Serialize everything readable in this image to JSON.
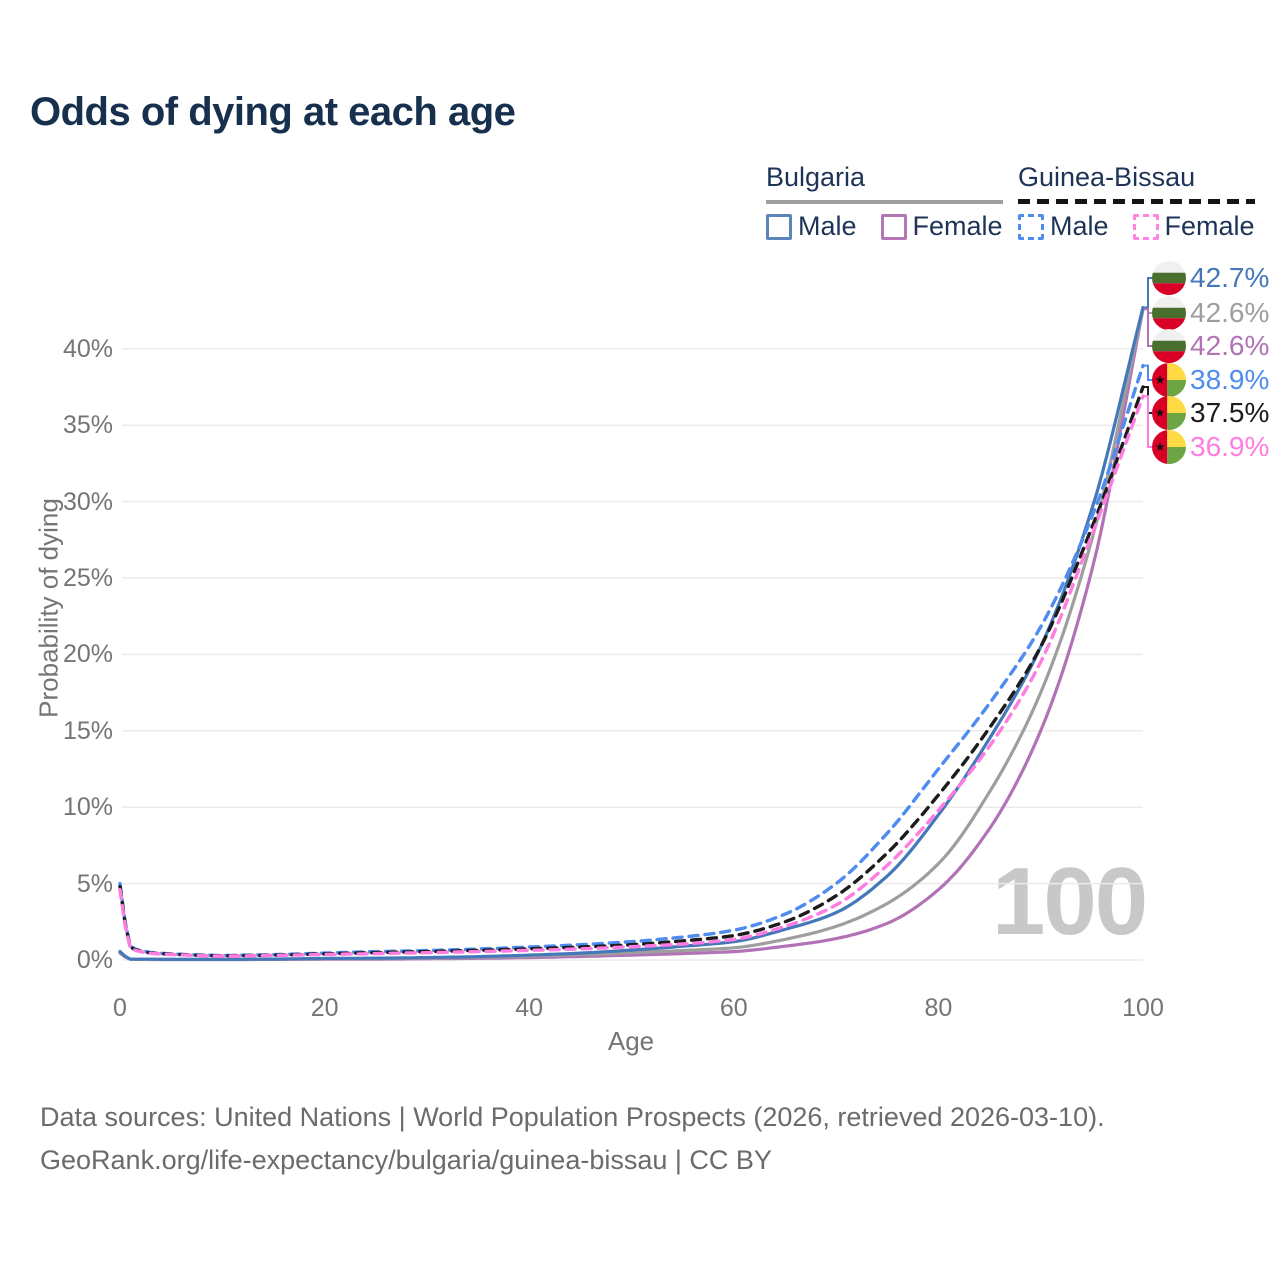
{
  "title": "Odds of dying at each age",
  "legend": {
    "groups": [
      {
        "country": "Bulgaria",
        "style": "solid",
        "entries": [
          {
            "label": "Male",
            "key": "bg_male"
          },
          {
            "label": "Female",
            "key": "bg_female"
          }
        ]
      },
      {
        "country": "Guinea-Bissau",
        "style": "dashed",
        "entries": [
          {
            "label": "Male",
            "key": "gw_male"
          },
          {
            "label": "Female",
            "key": "gw_female"
          }
        ]
      }
    ]
  },
  "watermark": "100",
  "footer": {
    "line1": "Data sources: United Nations | World Population Prospects (2026, retrieved 2026-03-10).",
    "line2": "GeoRank.org/life-expectancy/bulgaria/guinea-bissau | CC BY"
  },
  "colors": {
    "title": "#17304e",
    "axis_text": "#757575",
    "grid": "#ebebeb",
    "bg_male": "#4478b9",
    "bg_both": "#9e9e9e",
    "bg_female": "#b173b6",
    "gw_male": "#4e8cf0",
    "gw_both": "#1c1c1c",
    "gw_female": "#ff7ce0"
  },
  "chart_data": {
    "type": "line",
    "title": "Odds of dying at each age",
    "xlabel": "Age",
    "ylabel": "Probability of dying",
    "xlim": [
      0,
      100
    ],
    "ylim_percent": [
      0,
      44
    ],
    "x_ticks": [
      0,
      20,
      40,
      60,
      80,
      100
    ],
    "y_ticks_percent": [
      0,
      5,
      10,
      15,
      20,
      25,
      30,
      35,
      40
    ],
    "y_tick_suffix": "%",
    "grid": "horizontal-only",
    "legend_position": "top-right",
    "ages": [
      0,
      1,
      2,
      3,
      5,
      10,
      15,
      20,
      25,
      30,
      35,
      40,
      45,
      50,
      55,
      60,
      65,
      70,
      75,
      80,
      85,
      90,
      95,
      100
    ],
    "series": [
      {
        "name": "Bulgaria Male",
        "key": "bg_male",
        "country": "Bulgaria",
        "flag": "bulgaria",
        "dash": false,
        "color": "#4478b9",
        "end_label": "42.7%",
        "values_percent": [
          0.55,
          0.06,
          0.05,
          0.05,
          0.04,
          0.04,
          0.06,
          0.1,
          0.12,
          0.16,
          0.22,
          0.32,
          0.45,
          0.65,
          0.9,
          1.2,
          2.0,
          3.1,
          5.5,
          9.5,
          14.5,
          20.5,
          29.5,
          42.7
        ]
      },
      {
        "name": "Bulgaria Both sexes",
        "key": "bg_both",
        "country": "Bulgaria",
        "flag": "bulgaria",
        "dash": false,
        "color": "#9e9e9e",
        "end_label": "42.6%",
        "values_percent": [
          0.5,
          0.055,
          0.045,
          0.04,
          0.03,
          0.03,
          0.05,
          0.08,
          0.1,
          0.13,
          0.17,
          0.25,
          0.35,
          0.48,
          0.62,
          0.8,
          1.35,
          2.2,
          3.7,
          6.3,
          11.0,
          17.5,
          27.5,
          42.6
        ]
      },
      {
        "name": "Bulgaria Female",
        "key": "bg_female",
        "country": "Bulgaria",
        "flag": "bulgaria",
        "dash": false,
        "color": "#b173b6",
        "end_label": "42.6%",
        "values_percent": [
          0.45,
          0.05,
          0.04,
          0.035,
          0.03,
          0.03,
          0.04,
          0.05,
          0.06,
          0.08,
          0.11,
          0.16,
          0.23,
          0.32,
          0.42,
          0.55,
          0.9,
          1.4,
          2.4,
          4.6,
          8.6,
          15.0,
          25.5,
          42.6
        ]
      },
      {
        "name": "Guinea-Bissau Male",
        "key": "gw_male",
        "country": "Guinea-Bissau",
        "flag": "guinea-bissau",
        "dash": true,
        "color": "#4e8cf0",
        "end_label": "38.9%",
        "values_percent": [
          5.0,
          0.9,
          0.62,
          0.5,
          0.4,
          0.3,
          0.35,
          0.45,
          0.55,
          0.62,
          0.72,
          0.85,
          1.0,
          1.2,
          1.5,
          1.95,
          3.0,
          5.0,
          8.3,
          12.5,
          16.8,
          21.8,
          29.0,
          38.9
        ]
      },
      {
        "name": "Guinea-Bissau Both sexes",
        "key": "gw_both",
        "country": "Guinea-Bissau",
        "flag": "guinea-bissau",
        "dash": true,
        "color": "#1c1c1c",
        "end_label": "37.5%",
        "values_percent": [
          4.8,
          0.85,
          0.58,
          0.46,
          0.38,
          0.28,
          0.32,
          0.4,
          0.48,
          0.55,
          0.63,
          0.73,
          0.85,
          1.0,
          1.25,
          1.6,
          2.5,
          4.2,
          7.0,
          10.8,
          15.2,
          20.5,
          28.3,
          37.5
        ]
      },
      {
        "name": "Guinea-Bissau Female",
        "key": "gw_female",
        "country": "Guinea-Bissau",
        "flag": "guinea-bissau",
        "dash": true,
        "color": "#ff7ce0",
        "end_label": "36.9%",
        "values_percent": [
          4.6,
          0.8,
          0.55,
          0.44,
          0.36,
          0.26,
          0.3,
          0.36,
          0.42,
          0.48,
          0.55,
          0.63,
          0.73,
          0.87,
          1.05,
          1.35,
          2.2,
          3.6,
          6.2,
          9.8,
          14.0,
          19.5,
          27.8,
          36.9
        ]
      }
    ]
  }
}
